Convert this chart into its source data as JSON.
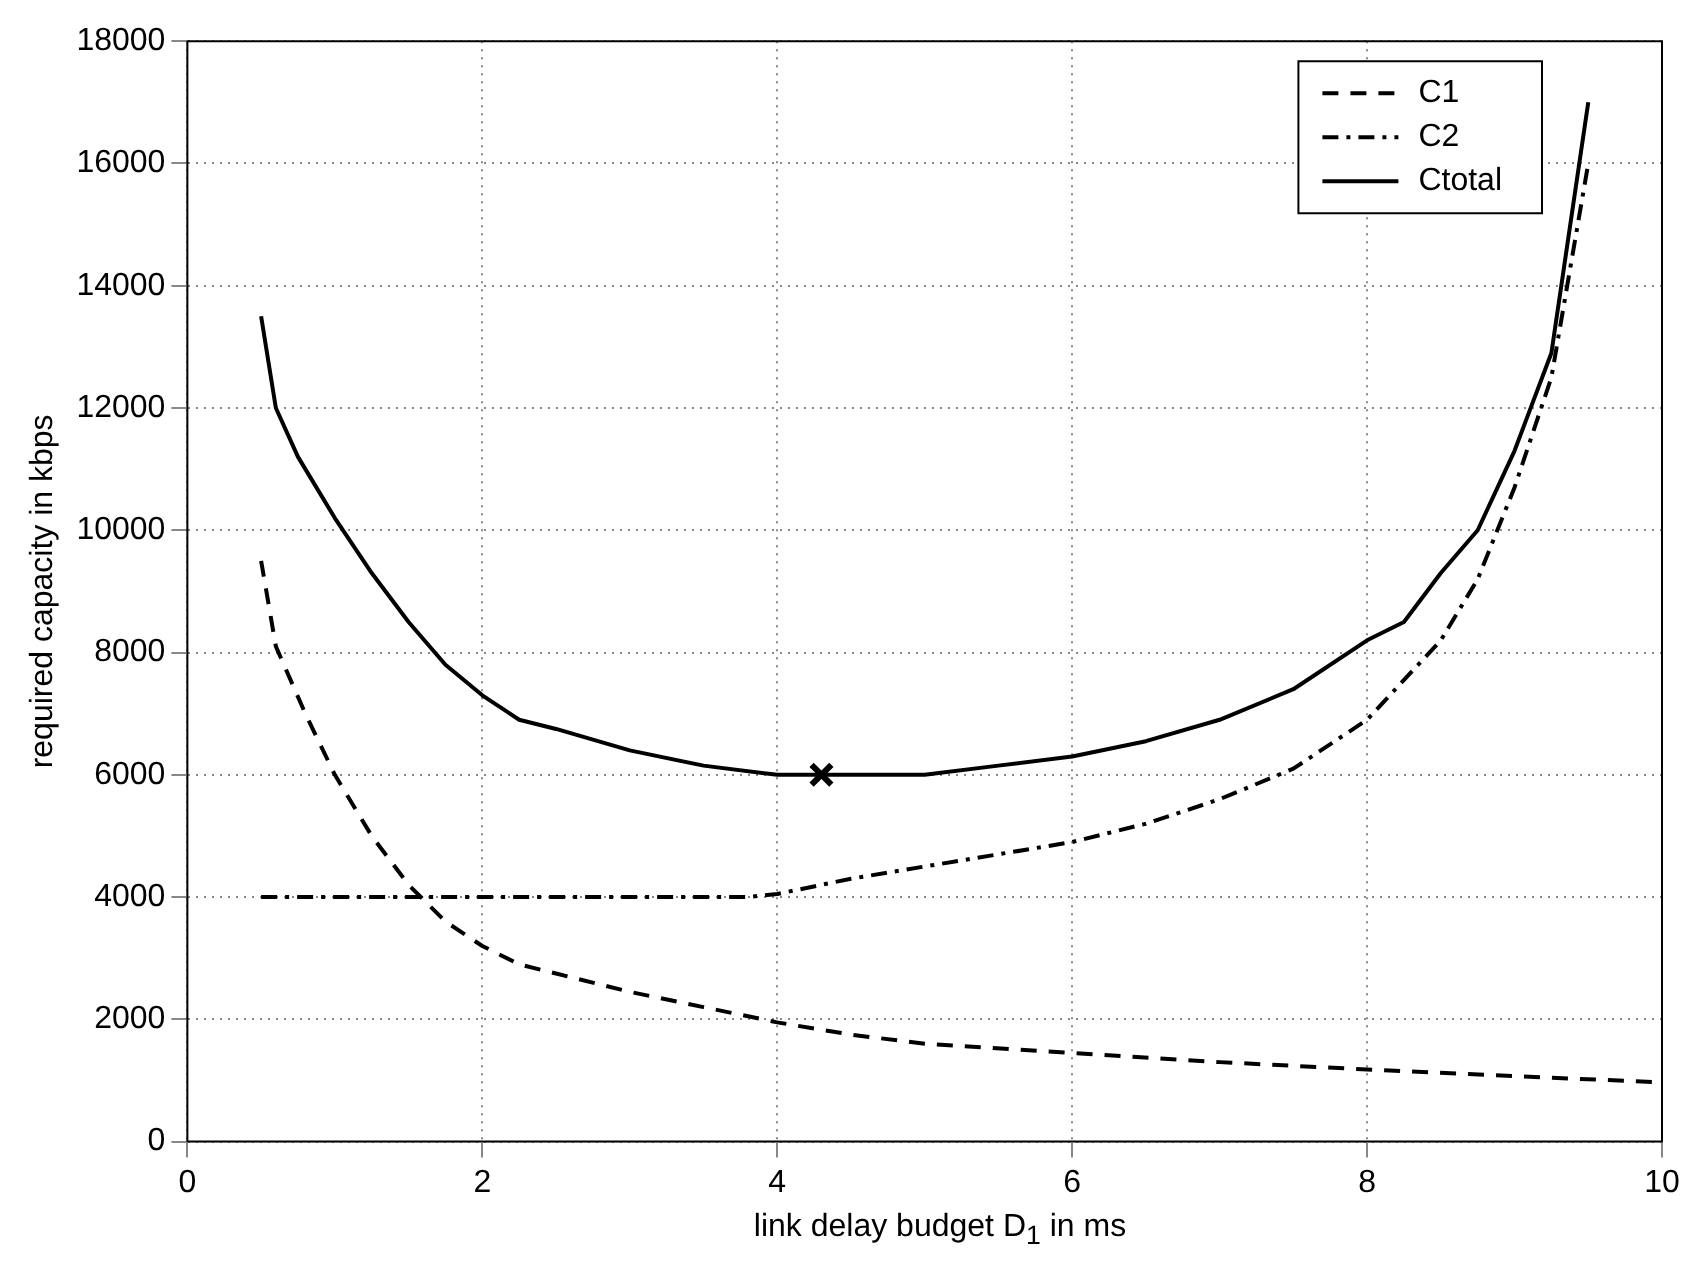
{
  "chart_data": {
    "type": "line",
    "xlabel": "link delay budget D$_{1}$ in ms",
    "ylabel": "required capacity in kbps",
    "xlim": [
      0,
      10
    ],
    "xticks": [
      0,
      2,
      4,
      6,
      8,
      10
    ],
    "ylim": [
      0,
      18000
    ],
    "yticks": [
      0,
      2000,
      4000,
      6000,
      8000,
      10000,
      12000,
      14000,
      16000,
      18000
    ],
    "grid": true,
    "legend": "top right",
    "marker": "none",
    "series": [
      {
        "name": "C1",
        "color": "#000000",
        "line_style": "dashed",
        "x": [
          0.5,
          0.6,
          0.8,
          1,
          1.25,
          1.5,
          1.75,
          2,
          2.25,
          2.5,
          3,
          3.5,
          4,
          4.5,
          5,
          6,
          7,
          8,
          9,
          10
        ],
        "values": [
          9500,
          8100,
          7000,
          6000,
          5000,
          4200,
          3600,
          3200,
          2900,
          2750,
          2450,
          2200,
          1950,
          1750,
          1600,
          1450,
          1300,
          1180,
          1070,
          970
        ]
      },
      {
        "name": "C2",
        "color": "#000000",
        "line_style": "dashdot",
        "x": [
          0.5,
          1,
          2,
          3,
          3.8,
          4,
          4.5,
          5,
          5.5,
          6,
          6.5,
          7,
          7.5,
          8,
          8.5,
          8.75,
          9,
          9.25,
          9.5
        ],
        "values": [
          4000,
          4000,
          4000,
          4000,
          4000,
          4050,
          4300,
          4500,
          4700,
          4900,
          5200,
          5600,
          6100,
          6900,
          8200,
          9200,
          10700,
          12500,
          16000
        ]
      },
      {
        "name": "Ctotal",
        "color": "#000000",
        "line_style": "solid",
        "x": [
          0.5,
          0.6,
          0.75,
          1,
          1.25,
          1.5,
          1.75,
          2,
          2.25,
          2.5,
          3,
          3.5,
          4,
          4.5,
          5,
          5.5,
          6,
          6.5,
          7,
          7.5,
          8,
          8.25,
          8.5,
          8.75,
          9,
          9.25,
          9.5
        ],
        "values": [
          13500,
          12000,
          11200,
          10200,
          9300,
          8500,
          7800,
          7300,
          6900,
          6750,
          6400,
          6150,
          6000,
          6000,
          6000,
          6150,
          6300,
          6550,
          6900,
          7400,
          8200,
          8500,
          9300,
          10000,
          11300,
          12900,
          17000
        ]
      },
      {
        "type": "scatter",
        "marker": "cross",
        "color": "#000000",
        "x": [
          4.3
        ],
        "values": [
          6000
        ]
      }
    ]
  }
}
